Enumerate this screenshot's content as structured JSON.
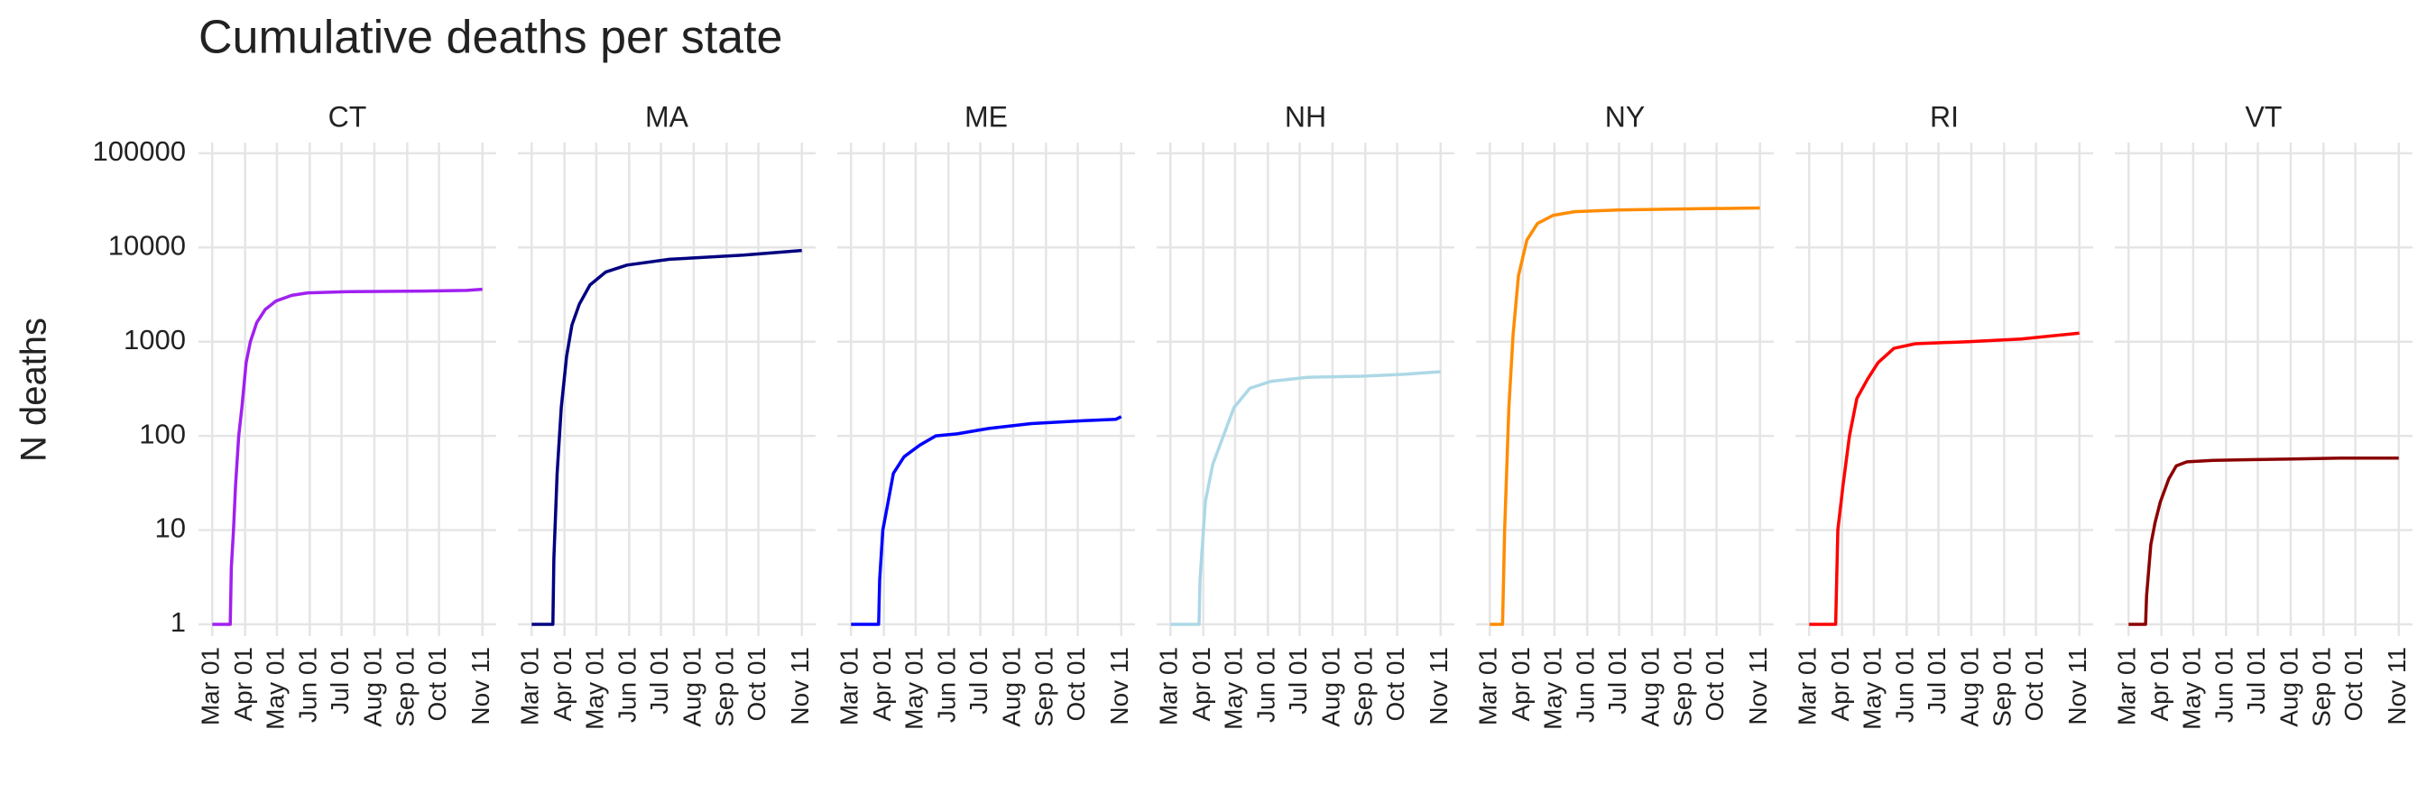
{
  "title": "Cumulative deaths per state",
  "y_label": "N deaths",
  "chart_data": [
    {
      "type": "line",
      "title": "CT",
      "color": "#a020f0",
      "log_y": true,
      "grid": true,
      "x": [
        0,
        17,
        18,
        20,
        22,
        25,
        28,
        32,
        36,
        42,
        50,
        60,
        75,
        90,
        130,
        200,
        240,
        255
      ],
      "values": [
        1,
        1,
        4,
        10,
        30,
        100,
        200,
        600,
        1000,
        1600,
        2200,
        2700,
        3100,
        3300,
        3400,
        3450,
        3500,
        3600
      ],
      "xlim": [
        -13,
        268
      ],
      "xticks": [
        {
          "value": 0,
          "label": "Mar 01"
        },
        {
          "value": 31,
          "label": "Apr 01"
        },
        {
          "value": 61,
          "label": "May 01"
        },
        {
          "value": 92,
          "label": "Jun 01"
        },
        {
          "value": 122,
          "label": "Jul 01"
        },
        {
          "value": 153,
          "label": "Aug 01"
        },
        {
          "value": 184,
          "label": "Sep 01"
        },
        {
          "value": 214,
          "label": "Oct 01"
        },
        {
          "value": 255,
          "label": "Nov 11"
        }
      ],
      "ylim": [
        0.75,
        130000
      ],
      "yticks": [
        1,
        10,
        100,
        1000,
        10000,
        100000
      ]
    },
    {
      "type": "line",
      "title": "MA",
      "color": "#000080",
      "log_y": true,
      "grid": true,
      "x": [
        0,
        20,
        21,
        24,
        28,
        33,
        38,
        45,
        55,
        70,
        90,
        130,
        200,
        255
      ],
      "values": [
        1,
        1,
        5,
        40,
        200,
        700,
        1500,
        2500,
        4000,
        5500,
        6500,
        7500,
        8300,
        9300
      ],
      "xlim": [
        -13,
        268
      ],
      "xticks": [
        {
          "value": 0,
          "label": "Mar 01"
        },
        {
          "value": 31,
          "label": "Apr 01"
        },
        {
          "value": 61,
          "label": "May 01"
        },
        {
          "value": 92,
          "label": "Jun 01"
        },
        {
          "value": 122,
          "label": "Jul 01"
        },
        {
          "value": 153,
          "label": "Aug 01"
        },
        {
          "value": 184,
          "label": "Sep 01"
        },
        {
          "value": 214,
          "label": "Oct 01"
        },
        {
          "value": 255,
          "label": "Nov 11"
        }
      ],
      "ylim": [
        0.75,
        130000
      ],
      "yticks": [
        1,
        10,
        100,
        1000,
        10000,
        100000
      ]
    },
    {
      "type": "line",
      "title": "ME",
      "color": "#0000ff",
      "log_y": true,
      "grid": true,
      "x": [
        0,
        26,
        27,
        30,
        35,
        40,
        50,
        65,
        80,
        100,
        130,
        170,
        220,
        250,
        255
      ],
      "values": [
        1,
        1,
        3,
        10,
        20,
        40,
        60,
        80,
        100,
        105,
        120,
        135,
        145,
        150,
        160
      ],
      "xlim": [
        -13,
        268
      ],
      "xticks": [
        {
          "value": 0,
          "label": "Mar 01"
        },
        {
          "value": 31,
          "label": "Apr 01"
        },
        {
          "value": 61,
          "label": "May 01"
        },
        {
          "value": 92,
          "label": "Jun 01"
        },
        {
          "value": 122,
          "label": "Jul 01"
        },
        {
          "value": 153,
          "label": "Aug 01"
        },
        {
          "value": 184,
          "label": "Sep 01"
        },
        {
          "value": 214,
          "label": "Oct 01"
        },
        {
          "value": 255,
          "label": "Nov 11"
        }
      ],
      "ylim": [
        0.75,
        130000
      ],
      "yticks": [
        1,
        10,
        100,
        1000,
        10000,
        100000
      ]
    },
    {
      "type": "line",
      "title": "NH",
      "color": "#add8e6",
      "log_y": true,
      "grid": true,
      "x": [
        0,
        27,
        28,
        33,
        40,
        50,
        60,
        75,
        95,
        130,
        180,
        220,
        255
      ],
      "values": [
        1,
        1,
        3,
        20,
        50,
        100,
        200,
        320,
        380,
        420,
        430,
        450,
        480
      ],
      "xlim": [
        -13,
        268
      ],
      "xticks": [
        {
          "value": 0,
          "label": "Mar 01"
        },
        {
          "value": 31,
          "label": "Apr 01"
        },
        {
          "value": 61,
          "label": "May 01"
        },
        {
          "value": 92,
          "label": "Jun 01"
        },
        {
          "value": 122,
          "label": "Jul 01"
        },
        {
          "value": 153,
          "label": "Aug 01"
        },
        {
          "value": 184,
          "label": "Sep 01"
        },
        {
          "value": 214,
          "label": "Oct 01"
        },
        {
          "value": 255,
          "label": "Nov 11"
        }
      ],
      "ylim": [
        0.75,
        130000
      ],
      "yticks": [
        1,
        10,
        100,
        1000,
        10000,
        100000
      ]
    },
    {
      "type": "line",
      "title": "NY",
      "color": "#ff8c00",
      "log_y": true,
      "grid": true,
      "x": [
        0,
        12,
        14,
        18,
        22,
        27,
        35,
        45,
        60,
        80,
        120,
        200,
        255
      ],
      "values": [
        1,
        1,
        10,
        200,
        1200,
        5000,
        12000,
        18000,
        22000,
        24000,
        25000,
        25800,
        26300
      ],
      "xlim": [
        -13,
        268
      ],
      "xticks": [
        {
          "value": 0,
          "label": "Mar 01"
        },
        {
          "value": 31,
          "label": "Apr 01"
        },
        {
          "value": 61,
          "label": "May 01"
        },
        {
          "value": 92,
          "label": "Jun 01"
        },
        {
          "value": 122,
          "label": "Jul 01"
        },
        {
          "value": 153,
          "label": "Aug 01"
        },
        {
          "value": 184,
          "label": "Sep 01"
        },
        {
          "value": 214,
          "label": "Oct 01"
        },
        {
          "value": 255,
          "label": "Nov 11"
        }
      ],
      "ylim": [
        0.75,
        130000
      ],
      "yticks": [
        1,
        10,
        100,
        1000,
        10000,
        100000
      ]
    },
    {
      "type": "line",
      "title": "RI",
      "color": "#ff0000",
      "log_y": true,
      "grid": true,
      "x": [
        0,
        25,
        27,
        32,
        38,
        45,
        55,
        65,
        80,
        100,
        150,
        200,
        255
      ],
      "values": [
        1,
        1,
        10,
        30,
        100,
        250,
        400,
        600,
        850,
        950,
        1000,
        1070,
        1230
      ],
      "xlim": [
        -13,
        268
      ],
      "xticks": [
        {
          "value": 0,
          "label": "Mar 01"
        },
        {
          "value": 31,
          "label": "Apr 01"
        },
        {
          "value": 61,
          "label": "May 01"
        },
        {
          "value": 92,
          "label": "Jun 01"
        },
        {
          "value": 122,
          "label": "Jul 01"
        },
        {
          "value": 153,
          "label": "Aug 01"
        },
        {
          "value": 184,
          "label": "Sep 01"
        },
        {
          "value": 214,
          "label": "Oct 01"
        },
        {
          "value": 255,
          "label": "Nov 11"
        }
      ],
      "ylim": [
        0.75,
        130000
      ],
      "yticks": [
        1,
        10,
        100,
        1000,
        10000,
        100000
      ]
    },
    {
      "type": "line",
      "title": "VT",
      "color": "#8b0000",
      "log_y": true,
      "grid": true,
      "x": [
        0,
        16,
        17,
        21,
        25,
        30,
        38,
        45,
        55,
        80,
        120,
        160,
        200,
        255
      ],
      "values": [
        1,
        1,
        2,
        7,
        12,
        20,
        35,
        48,
        53,
        55,
        56,
        57,
        58,
        58
      ],
      "xlim": [
        -13,
        268
      ],
      "xticks": [
        {
          "value": 0,
          "label": "Mar 01"
        },
        {
          "value": 31,
          "label": "Apr 01"
        },
        {
          "value": 61,
          "label": "May 01"
        },
        {
          "value": 92,
          "label": "Jun 01"
        },
        {
          "value": 122,
          "label": "Jul 01"
        },
        {
          "value": 153,
          "label": "Aug 01"
        },
        {
          "value": 184,
          "label": "Sep 01"
        },
        {
          "value": 214,
          "label": "Oct 01"
        },
        {
          "value": 255,
          "label": "Nov 11"
        }
      ],
      "ylim": [
        0.75,
        130000
      ],
      "yticks": [
        1,
        10,
        100,
        1000,
        10000,
        100000
      ]
    }
  ]
}
